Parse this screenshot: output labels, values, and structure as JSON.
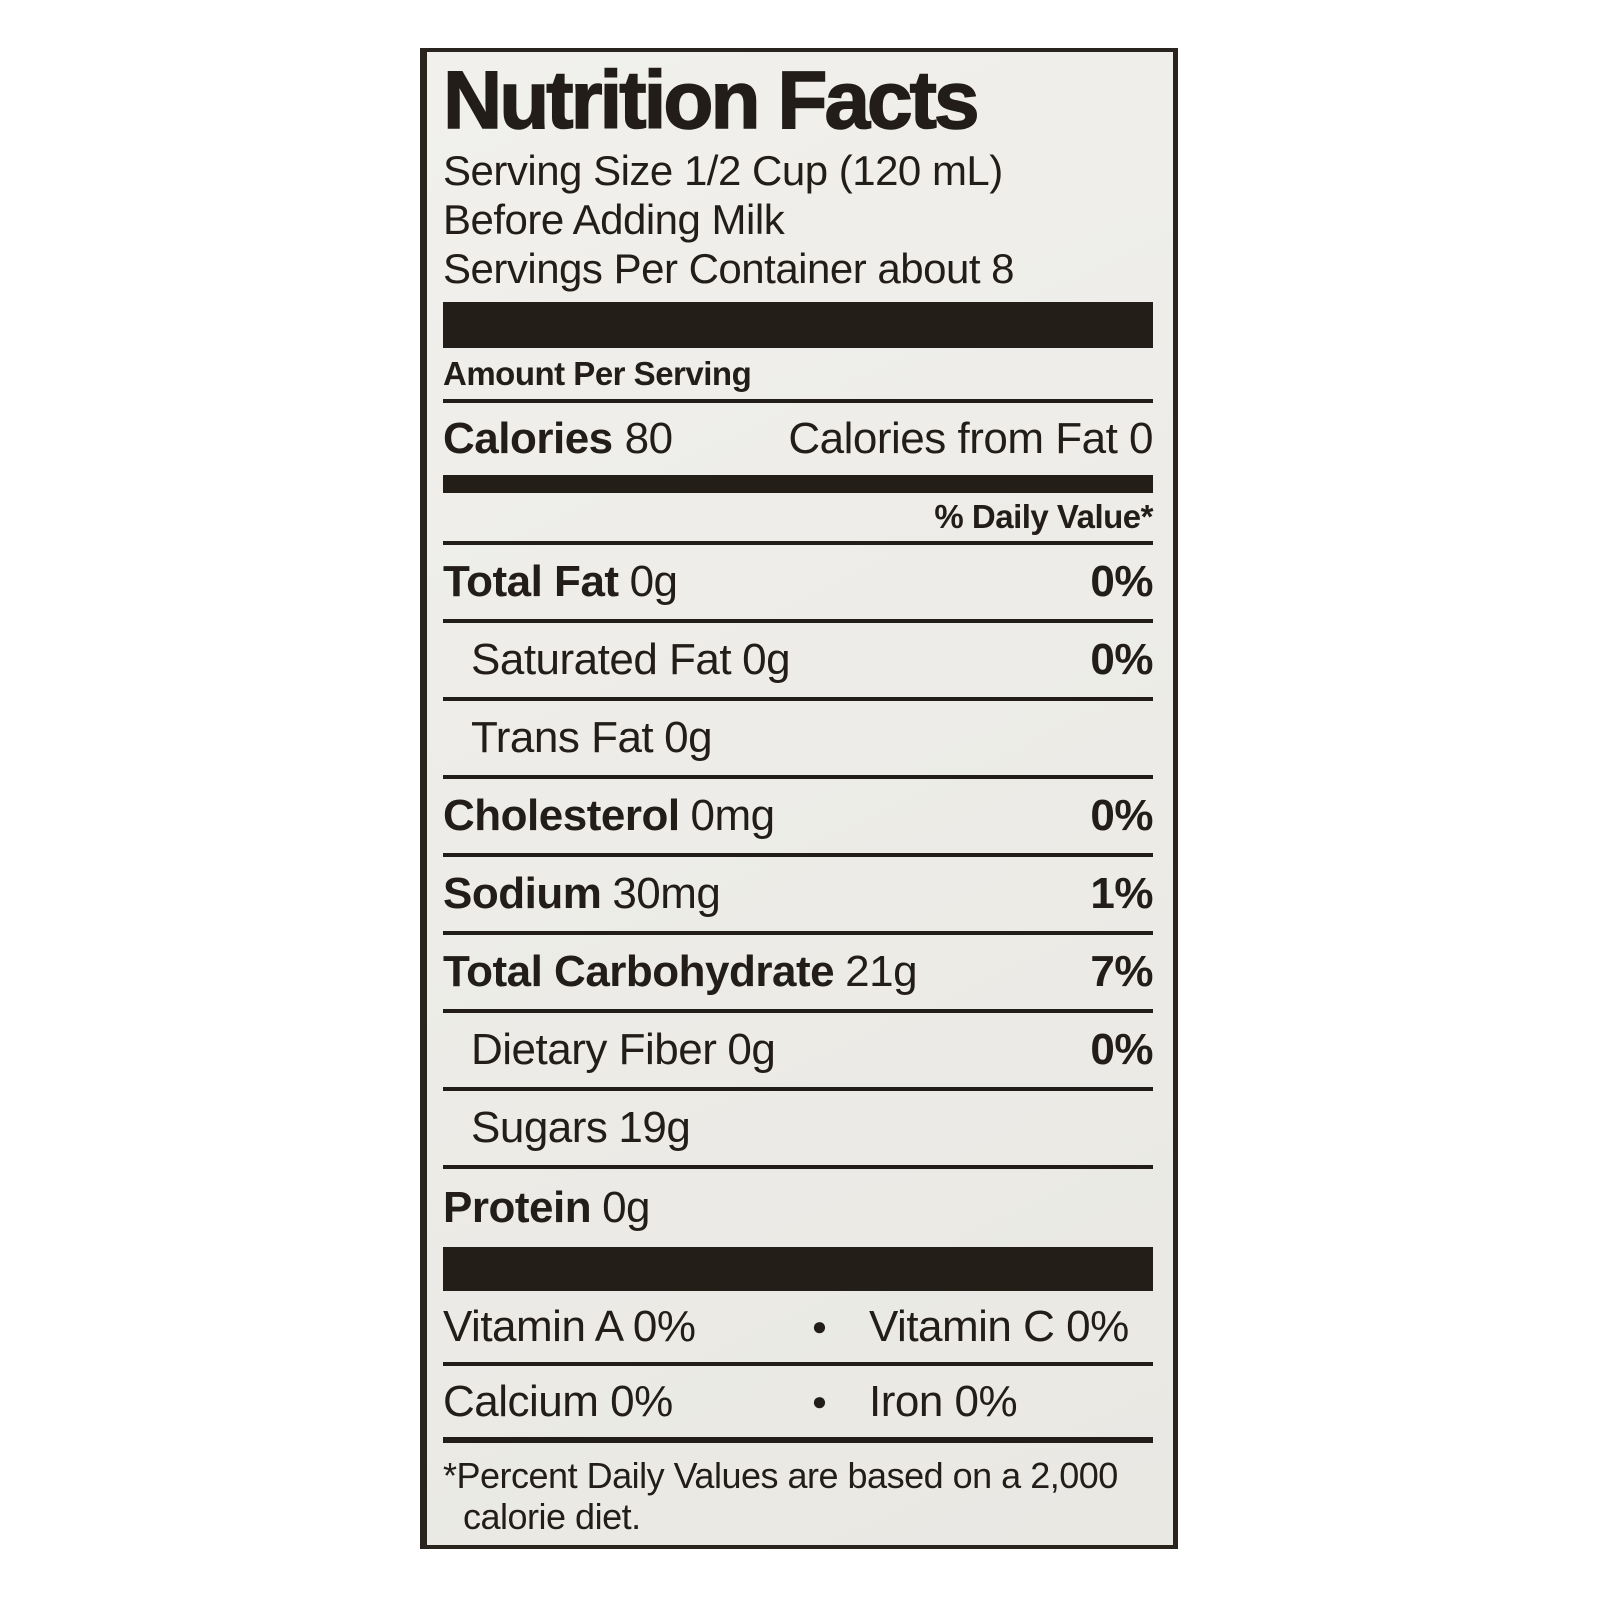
{
  "label": {
    "title": "Nutrition Facts",
    "serving": {
      "line1": "Serving Size 1/2 Cup (120 mL)",
      "line2": "Before Adding Milk",
      "line3": "Servings Per Container about 8"
    },
    "amount_per_serving": "Amount Per Serving",
    "calories": {
      "label": "Calories",
      "value": "80",
      "from_fat": "Calories from Fat 0"
    },
    "daily_value_header": "% Daily Value*",
    "nutrients": [
      {
        "name": "Total Fat",
        "amount": "0g",
        "dv": "0%",
        "indent": false
      },
      {
        "name": "Saturated Fat",
        "amount": "0g",
        "dv": "0%",
        "indent": true
      },
      {
        "name": "Trans Fat",
        "amount": "0g",
        "dv": "",
        "indent": true
      },
      {
        "name": "Cholesterol",
        "amount": "0mg",
        "dv": "0%",
        "indent": false
      },
      {
        "name": "Sodium",
        "amount": "30mg",
        "dv": "1%",
        "indent": false
      },
      {
        "name": "Total Carbohydrate",
        "amount": "21g",
        "dv": "7%",
        "indent": false
      },
      {
        "name": "Dietary Fiber",
        "amount": "0g",
        "dv": "0%",
        "indent": true
      },
      {
        "name": "Sugars",
        "amount": "19g",
        "dv": "",
        "indent": true
      },
      {
        "name": "Protein",
        "amount": "0g",
        "dv": "",
        "indent": false
      }
    ],
    "bullet": "●",
    "vitamins": [
      {
        "left": "Vitamin A 0%",
        "right": "Vitamin C 0%"
      },
      {
        "left": "Calcium 0%",
        "right": "Iron 0%"
      }
    ],
    "footnote_line1": "*Percent Daily Values are based on a 2,000",
    "footnote_line2": "calorie diet.",
    "colors": {
      "ink": "#221d18",
      "label_background": "#edece8",
      "page_background": "#ffffff"
    }
  }
}
